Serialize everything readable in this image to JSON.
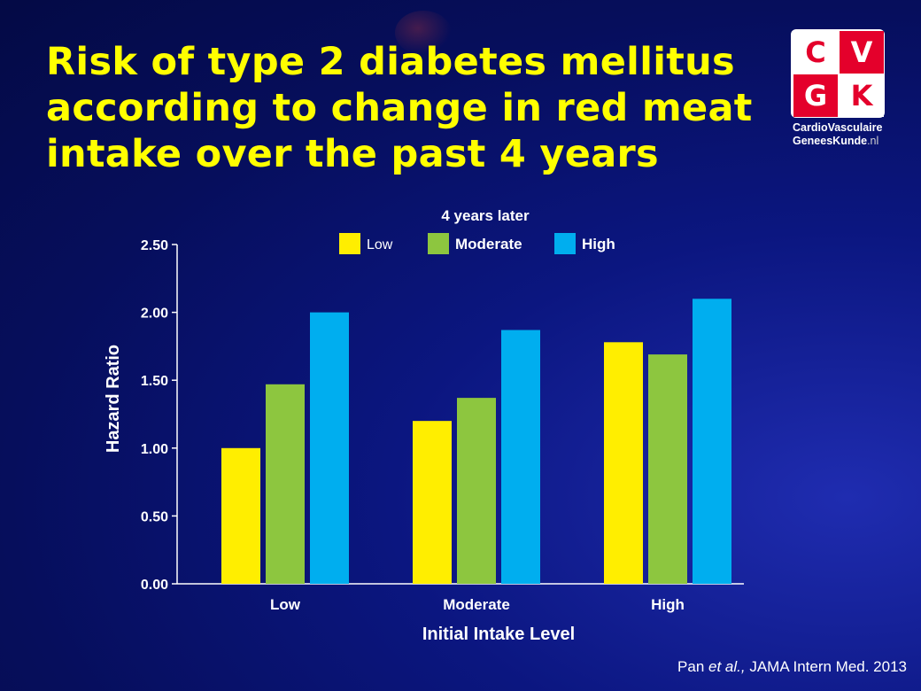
{
  "slide": {
    "title_lines": [
      "Risk of type 2 diabetes mellitus",
      "according to change in red meat",
      "intake over the past 4 years"
    ],
    "citation_author": "Pan",
    "citation_etal": "et al.,",
    "citation_source": "JAMA Intern Med. 2013"
  },
  "logo": {
    "letters": [
      "C",
      "V",
      "G",
      "K"
    ],
    "line1": "CardioVasculaire",
    "line2_main": "GeneesKunde",
    "line2_suffix": ".nl"
  },
  "colors": {
    "title": "#ffff00",
    "low": "#ffee00",
    "moderate": "#8dc63f",
    "high": "#00aeef",
    "axis": "#ffffff"
  },
  "chart_data": {
    "type": "bar",
    "title": "",
    "legend_title": "4 years later",
    "legend_position": "top-center",
    "categories": [
      "Low",
      "Moderate",
      "High"
    ],
    "xlabel": "Initial Intake Level",
    "ylabel": "Hazard Ratio",
    "ylim": [
      0,
      2.5
    ],
    "yticks": [
      "0.00",
      "0.50",
      "1.00",
      "1.50",
      "2.00",
      "2.50"
    ],
    "grid": false,
    "series": [
      {
        "name": "Low",
        "color": "#ffee00",
        "values": [
          1.0,
          1.2,
          1.78
        ]
      },
      {
        "name": "Moderate",
        "color": "#8dc63f",
        "values": [
          1.47,
          1.37,
          1.69
        ]
      },
      {
        "name": "High",
        "color": "#00aeef",
        "values": [
          2.0,
          1.87,
          2.1
        ]
      }
    ]
  }
}
